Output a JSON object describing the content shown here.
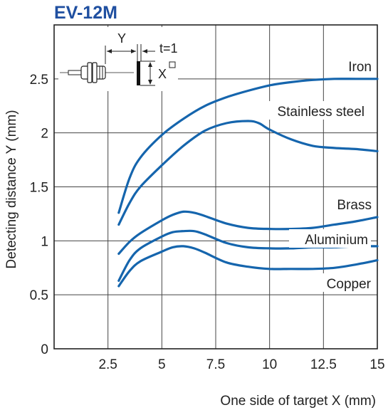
{
  "chart_data": {
    "type": "line",
    "title": "EV-12M",
    "xlabel": "One side of target X (mm)",
    "ylabel": "Detecting distance Y (mm)",
    "xlim": [
      0,
      15
    ],
    "ylim": [
      0,
      3
    ],
    "xticks": [
      2.5,
      5,
      7.5,
      10,
      12.5,
      15
    ],
    "xtick_labels": [
      "2.5",
      "5",
      "7.5",
      "10",
      "12.5",
      "15"
    ],
    "yticks": [
      0,
      0.5,
      1,
      1.5,
      2,
      2.5
    ],
    "ytick_labels": [
      "0",
      "0.5",
      "1",
      "1.5",
      "2",
      "2.5"
    ],
    "grid": true,
    "legend": "direct labels on curves",
    "line_color": "#1565ad",
    "series": [
      {
        "name": "Iron",
        "x": [
          3,
          3.5,
          4,
          5,
          6,
          7,
          8,
          9,
          10,
          11,
          12,
          13,
          14,
          15
        ],
        "y": [
          1.26,
          1.58,
          1.77,
          1.98,
          2.13,
          2.25,
          2.33,
          2.39,
          2.44,
          2.47,
          2.49,
          2.5,
          2.5,
          2.5
        ]
      },
      {
        "name": "Stainless steel",
        "x": [
          3,
          3.5,
          4,
          5,
          6,
          7,
          8,
          9,
          9.5,
          10,
          11,
          12,
          13,
          14,
          15
        ],
        "y": [
          1.15,
          1.35,
          1.5,
          1.7,
          1.88,
          2.02,
          2.09,
          2.11,
          2.09,
          2.03,
          1.94,
          1.88,
          1.86,
          1.85,
          1.83
        ]
      },
      {
        "name": "Brass",
        "x": [
          3,
          3.5,
          4,
          5,
          5.5,
          6,
          6.5,
          7,
          8,
          9,
          10,
          11,
          12,
          13,
          14,
          15
        ],
        "y": [
          0.88,
          0.99,
          1.07,
          1.19,
          1.24,
          1.27,
          1.26,
          1.23,
          1.16,
          1.12,
          1.11,
          1.11,
          1.12,
          1.15,
          1.18,
          1.22
        ]
      },
      {
        "name": "Aluminium",
        "x": [
          3,
          3.5,
          4,
          5,
          5.5,
          6,
          6.5,
          7,
          8,
          9,
          10,
          11,
          12,
          13,
          14,
          15
        ],
        "y": [
          0.63,
          0.82,
          0.93,
          1.04,
          1.08,
          1.09,
          1.09,
          1.06,
          0.98,
          0.94,
          0.93,
          0.93,
          0.94,
          0.94,
          0.95,
          0.95
        ]
      },
      {
        "name": "Copper",
        "x": [
          3,
          3.5,
          4,
          5,
          5.5,
          6,
          6.5,
          7,
          8,
          9,
          10,
          11,
          12,
          13,
          14,
          15
        ],
        "y": [
          0.58,
          0.72,
          0.81,
          0.9,
          0.94,
          0.95,
          0.93,
          0.89,
          0.8,
          0.76,
          0.74,
          0.74,
          0.74,
          0.75,
          0.78,
          0.82
        ]
      }
    ],
    "annotations": {
      "inset_labels": [
        "Y",
        "t=1",
        "X"
      ]
    }
  }
}
